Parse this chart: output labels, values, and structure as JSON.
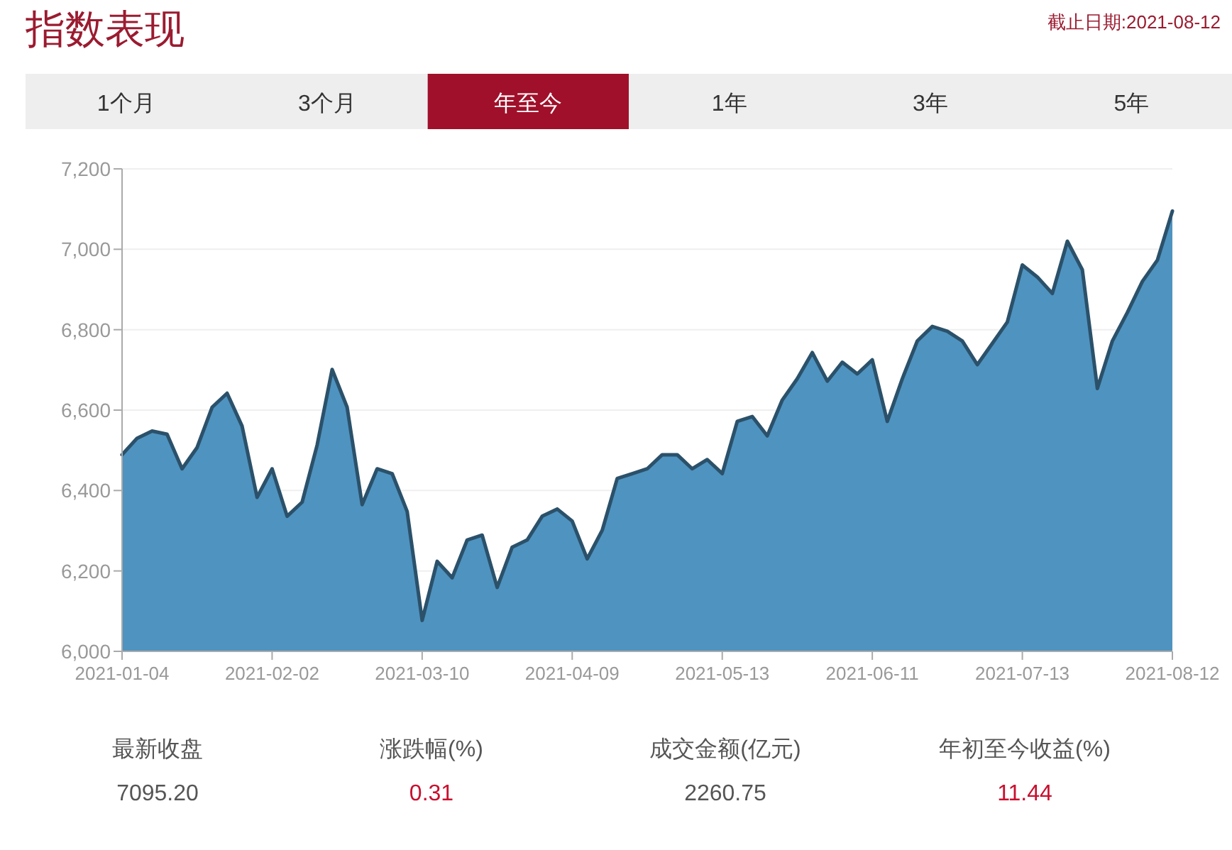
{
  "chart_data": {
    "type": "area",
    "title": "指数表现",
    "annotations": [
      "截止日期:2021-08-12",
      "1个月",
      "3个月",
      "年至今",
      "1年",
      "3年",
      "5年",
      "最新收盘",
      "涨跌幅(%)",
      "成交金额(亿元)",
      "年初至今收益(%)",
      "7095.20",
      "0.31",
      "2260.75",
      "11.44"
    ],
    "categories": [
      "2021-01-04",
      null,
      null,
      null,
      null,
      null,
      null,
      null,
      null,
      null,
      "2021-02-02",
      null,
      null,
      null,
      null,
      null,
      null,
      null,
      null,
      null,
      "2021-03-10",
      null,
      null,
      null,
      null,
      null,
      null,
      null,
      null,
      null,
      "2021-04-09",
      null,
      null,
      null,
      null,
      null,
      null,
      null,
      null,
      null,
      "2021-05-13",
      null,
      null,
      null,
      null,
      null,
      null,
      null,
      null,
      null,
      "2021-06-11",
      null,
      null,
      null,
      null,
      null,
      null,
      null,
      null,
      null,
      "2021-07-13",
      null,
      null,
      null,
      null,
      null,
      null,
      null,
      null,
      null,
      "2021-08-12"
    ],
    "series": [
      {
        "color": "#4f93c0",
        "values": [
          6489,
          6530,
          6548,
          6540,
          6454,
          6507,
          6607,
          6642,
          6560,
          6383,
          6454,
          6336,
          6371,
          6513,
          6701,
          6607,
          6365,
          6454,
          6442,
          6348,
          6077,
          6224,
          6183,
          6277,
          6289,
          6159,
          6259,
          6277,
          6336,
          6354,
          6324,
          6230,
          6301,
          6430,
          6442,
          6454,
          6489,
          6489,
          6454,
          6477,
          6442,
          6572,
          6584,
          6536,
          6625,
          6678,
          6743,
          6672,
          6719,
          6690,
          6725,
          6572,
          6678,
          6772,
          6808,
          6796,
          6772,
          6713,
          6766,
          6819,
          6961,
          6931,
          6890,
          7020,
          6949,
          6654,
          6772,
          6843,
          6920,
          6973,
          7095
        ]
      }
    ],
    "ylim": [
      6000,
      7200
    ],
    "yticks": [
      {
        "value": 6000,
        "label": "6,000"
      },
      {
        "value": 6200,
        "label": "6,200"
      },
      {
        "value": 6400,
        "label": "6,400"
      },
      {
        "value": 6600,
        "label": "6,600"
      },
      {
        "value": 6800,
        "label": "6,800"
      },
      {
        "value": 7000,
        "label": "7,000"
      },
      {
        "value": 7200,
        "label": "7,200"
      }
    ],
    "grid": "y"
  }
}
